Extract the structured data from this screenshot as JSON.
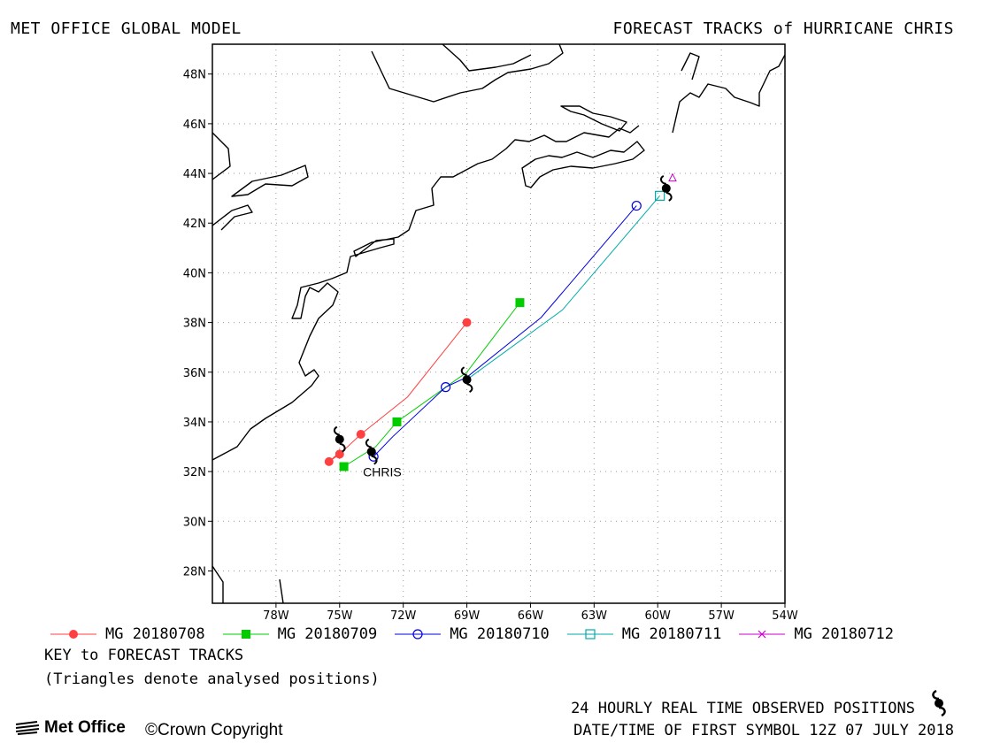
{
  "header": {
    "left": "MET OFFICE GLOBAL MODEL",
    "right": "FORECAST TRACKS of HURRICANE CHRIS"
  },
  "map": {
    "lon_range": [
      -81,
      -54
    ],
    "lat_range": [
      26.7,
      49.2
    ],
    "lon_ticks": [
      {
        "value": -78,
        "label": "78W"
      },
      {
        "value": -75,
        "label": "75W"
      },
      {
        "value": -72,
        "label": "72W"
      },
      {
        "value": -69,
        "label": "69W"
      },
      {
        "value": -66,
        "label": "66W"
      },
      {
        "value": -63,
        "label": "63W"
      },
      {
        "value": -60,
        "label": "60W"
      },
      {
        "value": -57,
        "label": "57W"
      },
      {
        "value": -54,
        "label": "54W"
      }
    ],
    "lat_ticks": [
      {
        "value": 28,
        "label": "28N"
      },
      {
        "value": 30,
        "label": "30N"
      },
      {
        "value": 32,
        "label": "32N"
      },
      {
        "value": 34,
        "label": "34N"
      },
      {
        "value": 36,
        "label": "36N"
      },
      {
        "value": 38,
        "label": "38N"
      },
      {
        "value": 40,
        "label": "40N"
      },
      {
        "value": 42,
        "label": "42N"
      },
      {
        "value": 44,
        "label": "44N"
      },
      {
        "value": 46,
        "label": "46N"
      },
      {
        "value": 48,
        "label": "48N"
      }
    ],
    "storm_label": {
      "text": "CHRIS",
      "lon": -73.9,
      "lat": 31.8
    },
    "tracks": [
      {
        "name": "MG 20180708",
        "color": "#ff4040",
        "marker": "circle-filled",
        "points": [
          [
            -75.0,
            32.9
          ],
          [
            -75.1,
            32.7
          ],
          [
            -75.5,
            32.4
          ],
          [
            -75.0,
            32.7
          ],
          [
            -74.0,
            33.5
          ],
          [
            -71.8,
            35.0
          ],
          [
            -69.0,
            38.0
          ]
        ],
        "markers": [
          [
            -75.5,
            32.4
          ],
          [
            -75.0,
            32.7
          ],
          [
            -74.0,
            33.5
          ],
          [
            -69.0,
            38.0
          ]
        ]
      },
      {
        "name": "MG 20180709",
        "color": "#00cc00",
        "marker": "square-filled",
        "points": [
          [
            -74.8,
            32.2
          ],
          [
            -73.3,
            33.0
          ],
          [
            -72.3,
            34.0
          ],
          [
            -69.0,
            36.0
          ],
          [
            -66.5,
            38.8
          ]
        ],
        "markers": [
          [
            -74.8,
            32.2
          ],
          [
            -72.3,
            34.0
          ],
          [
            -66.5,
            38.8
          ]
        ]
      },
      {
        "name": "MG 20180710",
        "color": "#0000dd",
        "marker": "circle-open",
        "points": [
          [
            -73.4,
            32.6
          ],
          [
            -72.5,
            33.4
          ],
          [
            -70.0,
            35.4
          ],
          [
            -69.0,
            35.8
          ],
          [
            -65.5,
            38.2
          ],
          [
            -61.0,
            42.7
          ]
        ],
        "markers": [
          [
            -73.4,
            32.6
          ],
          [
            -70.0,
            35.4
          ],
          [
            -61.0,
            42.7
          ]
        ]
      },
      {
        "name": "MG 20180711",
        "color": "#00aaaa",
        "marker": "square-open",
        "points": [
          [
            -69.0,
            35.7
          ],
          [
            -64.5,
            38.5
          ],
          [
            -59.9,
            43.1
          ]
        ],
        "markers": [
          [
            -59.9,
            43.1
          ]
        ]
      },
      {
        "name": "MG 20180712",
        "color": "#cc00cc",
        "marker": "cross",
        "points": [],
        "markers": []
      }
    ],
    "observed": [
      [
        -75.0,
        33.3
      ],
      [
        -73.5,
        32.8
      ],
      [
        -69.0,
        35.7
      ],
      [
        -59.6,
        43.4
      ]
    ],
    "analysed": [
      [
        -59.3,
        43.8
      ]
    ]
  },
  "legend": {
    "items": [
      {
        "label": "MG 20180708",
        "color": "#ff4040",
        "marker": "circle-filled"
      },
      {
        "label": "MG 20180709",
        "color": "#00cc00",
        "marker": "square-filled"
      },
      {
        "label": "MG 20180710",
        "color": "#0000dd",
        "marker": "circle-open"
      },
      {
        "label": "MG 20180711",
        "color": "#00aaaa",
        "marker": "square-open"
      },
      {
        "label": "MG 20180712",
        "color": "#cc00cc",
        "marker": "cross"
      }
    ],
    "key_title": "KEY to FORECAST TRACKS",
    "key_note": "(Triangles denote analysed positions)"
  },
  "footer": {
    "observed_note": "24 HOURLY REAL TIME OBSERVED POSITIONS",
    "date_note": "DATE/TIME OF FIRST SYMBOL 12Z 07 JULY 2018",
    "logo_text": "Met Office",
    "copyright": "©Crown Copyright"
  }
}
